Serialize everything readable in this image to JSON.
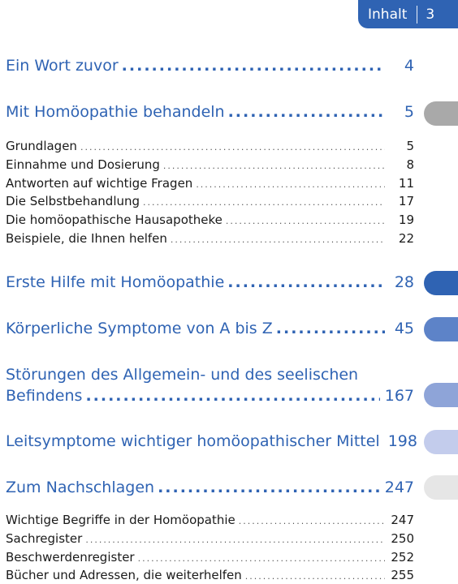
{
  "header": {
    "section": "Inhalt",
    "page": "3"
  },
  "toc": {
    "chapters": [
      {
        "title": "Ein Wort zuvor",
        "page": "4"
      },
      {
        "title": "Mit Homöopathie behandeln",
        "page": "5",
        "items": [
          {
            "title": "Grundlagen",
            "page": "5"
          },
          {
            "title": "Einnahme und Dosierung",
            "page": "8"
          },
          {
            "title": "Antworten auf wichtige Fragen",
            "page": "11"
          },
          {
            "title": "Die Selbstbehandlung",
            "page": "17"
          },
          {
            "title": "Die homöopathische Hausapotheke",
            "page": "19"
          },
          {
            "title": "Beispiele, die Ihnen helfen",
            "page": "22"
          }
        ]
      },
      {
        "title": "Erste Hilfe mit Homöopathie",
        "page": "28"
      },
      {
        "title": "Körperliche Symptome von A bis Z",
        "page": "45"
      },
      {
        "title_line1": "Störungen des Allgemein- und des seelischen",
        "title_line2": "Befindens",
        "page": "167"
      },
      {
        "title": "Leitsymptome wichtiger homöopathischer Mittel",
        "page": "198"
      },
      {
        "title": "Zum Nachschlagen",
        "page": "247",
        "items": [
          {
            "title": "Wichtige Begriffe in der Homöopathie",
            "page": "247"
          },
          {
            "title": "Sachregister",
            "page": "250"
          },
          {
            "title": "Beschwerdenregister",
            "page": "252"
          },
          {
            "title": "Bücher und Adressen, die weiterhelfen",
            "page": "255"
          }
        ]
      }
    ]
  },
  "colors": {
    "accent": "#2f63b3",
    "markers": [
      "#a9a9a9",
      "#2f63b3",
      "#5d83c8",
      "#8ea4d8",
      "#c3ccec",
      "#e6e6e6"
    ]
  }
}
